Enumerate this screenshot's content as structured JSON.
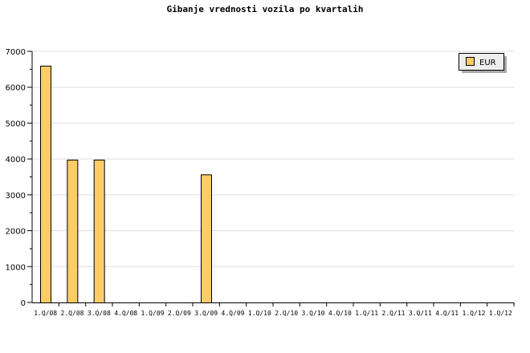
{
  "chart_data": {
    "type": "bar",
    "title": "Gibanje vrednosti vozila po kvartalih",
    "categories": [
      "1.Q/08",
      "2.Q/08",
      "3.Q/08",
      "4.Q/08",
      "1.Q/09",
      "2.Q/09",
      "3.Q/09",
      "4.Q/09",
      "1.Q/10",
      "2.Q/10",
      "3.Q/10",
      "4.Q/10",
      "1.Q/11",
      "2.Q/11",
      "3.Q/11",
      "4.Q/11",
      "1.Q/12",
      "1.Q/12"
    ],
    "series": [
      {
        "name": "EUR",
        "values": [
          6600,
          3980,
          3980,
          0,
          0,
          0,
          3570,
          0,
          0,
          0,
          0,
          0,
          0,
          0,
          0,
          0,
          0,
          0
        ],
        "color": "#FFCC66"
      }
    ],
    "ylim": [
      0,
      7000
    ],
    "yticks": [
      0,
      1000,
      2000,
      3000,
      4000,
      5000,
      6000,
      7000
    ],
    "grid": true,
    "legend": "top-right"
  }
}
